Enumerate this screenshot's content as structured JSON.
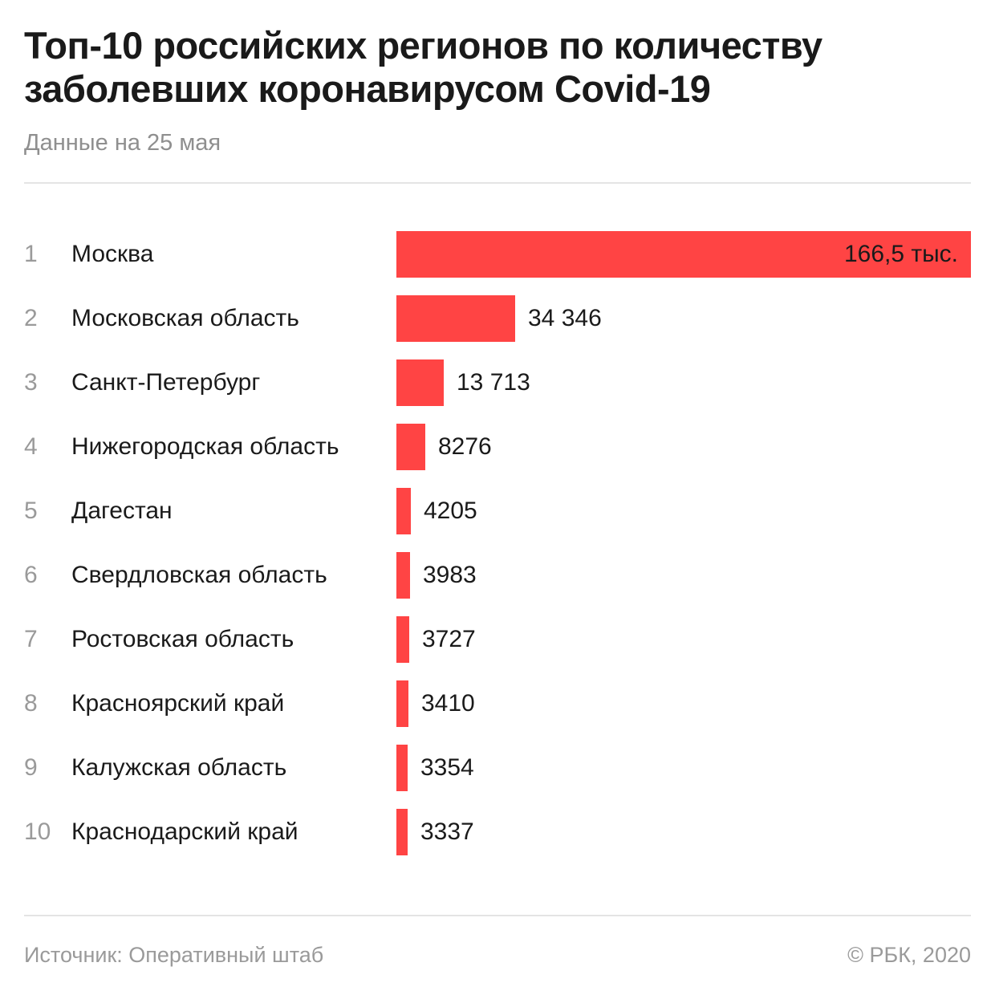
{
  "header": {
    "title": "Топ-10 российских регионов по количеству заболевших коронавирусом Covid-19",
    "subtitle": "Данные на 25 мая"
  },
  "footer": {
    "source": "Источник: Оперативный штаб",
    "copyright": "© РБК, 2020"
  },
  "colors": {
    "bar": "#ff4444",
    "text": "#1a1a1a",
    "muted": "#9a9a9a",
    "divider": "#e4e4e4"
  },
  "chart_data": {
    "type": "bar",
    "orientation": "horizontal",
    "title": "Топ-10 российских регионов по количеству заболевших коронавирусом Covid-19",
    "subtitle": "Данные на 25 мая",
    "xlabel": "",
    "ylabel": "",
    "grid": false,
    "legend": "none",
    "ranks": [
      "1",
      "2",
      "3",
      "4",
      "5",
      "6",
      "7",
      "8",
      "9",
      "10"
    ],
    "categories": [
      "Москва",
      "Московская область",
      "Санкт-Петербург",
      "Нижегородская область",
      "Дагестан",
      "Свердловская область",
      "Ростовская область",
      "Красноярский край",
      "Калужская область",
      "Краснодарский край"
    ],
    "values": [
      166500,
      34346,
      13713,
      8276,
      4205,
      3983,
      3727,
      3410,
      3354,
      3337
    ],
    "labels": [
      "166,5 тыс.",
      "34 346",
      "13 713",
      "8276",
      "4205",
      "3983",
      "3727",
      "3410",
      "3354",
      "3337"
    ],
    "xlim": [
      0,
      166500
    ]
  }
}
